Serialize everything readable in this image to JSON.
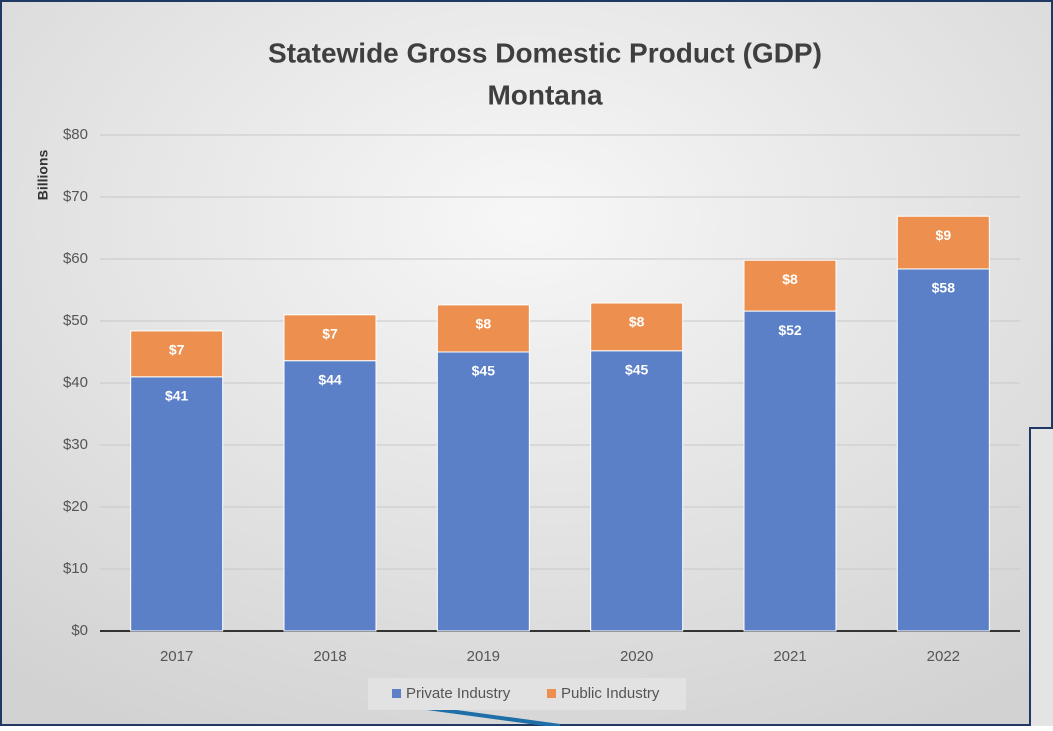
{
  "chart_data": {
    "type": "stacked_bar",
    "title": "Statewide Gross Domestic Product (GDP)",
    "subtitle": "Montana",
    "y_axis_label": "Billions",
    "categories": [
      "2017",
      "2018",
      "2019",
      "2020",
      "2021",
      "2022"
    ],
    "series": [
      {
        "name": "Private Industry",
        "color": "#5b80c8",
        "values": [
          41.0,
          43.6,
          45.0,
          45.2,
          51.6,
          58.4
        ],
        "value_labels": [
          "$41",
          "$44",
          "$45",
          "$45",
          "$52",
          "$58"
        ]
      },
      {
        "name": "Public Industry",
        "color": "#ec8f4f",
        "values": [
          7.4,
          7.4,
          7.6,
          7.7,
          8.2,
          8.5
        ],
        "value_labels": [
          "$7",
          "$7",
          "$8",
          "$8",
          "$8",
          "$9"
        ]
      }
    ],
    "ylim": [
      0,
      80
    ],
    "yticks": [
      {
        "value": 0,
        "label": "$0"
      },
      {
        "value": 10,
        "label": "$10"
      },
      {
        "value": 20,
        "label": "$20"
      },
      {
        "value": 30,
        "label": "$30"
      },
      {
        "value": 40,
        "label": "$40"
      },
      {
        "value": 50,
        "label": "$50"
      },
      {
        "value": 60,
        "label": "$60"
      },
      {
        "value": 70,
        "label": "$70"
      },
      {
        "value": 80,
        "label": "$80"
      }
    ],
    "grid": true,
    "legend": "bottom"
  }
}
